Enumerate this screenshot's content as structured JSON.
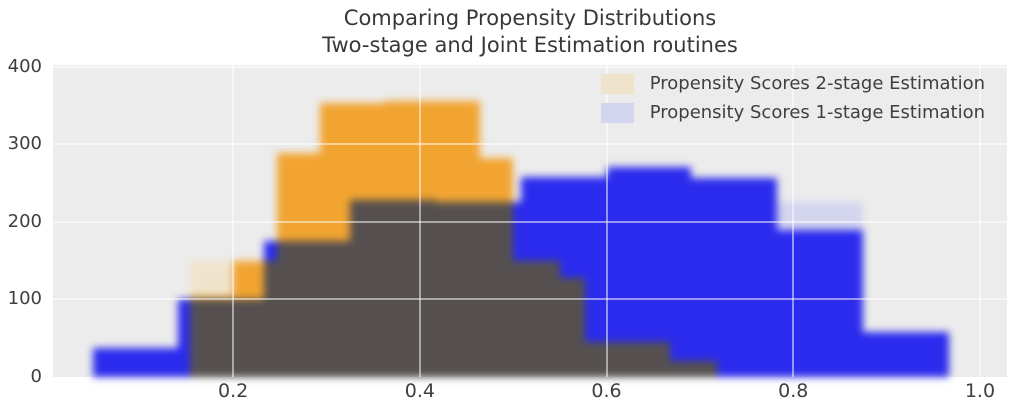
{
  "title": {
    "line1": "Comparing Propensity Distributions",
    "line2": "Two-stage and Joint Estimation routines"
  },
  "chart_data": {
    "type": "histogram",
    "title": "Comparing Propensity Distributions\nTwo-stage and Joint Estimation routines",
    "xlabel": "",
    "ylabel": "",
    "xlim": [
      0.007,
      1.029
    ],
    "ylim": [
      0,
      402
    ],
    "x_ticks": [
      0.2,
      0.4,
      0.6,
      0.8,
      1.0
    ],
    "y_ticks": [
      0,
      100,
      200,
      300,
      400
    ],
    "grid": true,
    "legend_position": "upper right",
    "colors": {
      "figure_bg": "#ffffff",
      "plot_bg": "#ececec",
      "gridline": "rgba(255,255,255,0.5)",
      "overlap": "#55504f",
      "tick_text": "#3f3f3f",
      "title_text": "#383838"
    },
    "series": [
      {
        "name": "Propensity Scores 2-stage Estimation",
        "color": "#f2a431",
        "legend_color": "#efe4cb",
        "steps": [
          [
            0.154,
            0.2,
            105
          ],
          [
            0.2,
            0.247,
            150
          ],
          [
            0.247,
            0.293,
            288
          ],
          [
            0.293,
            0.362,
            353
          ],
          [
            0.362,
            0.413,
            356
          ],
          [
            0.413,
            0.464,
            355
          ],
          [
            0.464,
            0.5,
            282
          ],
          [
            0.5,
            0.55,
            150
          ],
          [
            0.55,
            0.577,
            128
          ],
          [
            0.577,
            0.668,
            45
          ],
          [
            0.668,
            0.718,
            20
          ]
        ],
        "pale_steps": [
          [
            0.154,
            0.2,
            150
          ]
        ]
      },
      {
        "name": "Propensity Scores 1-stage Estimation",
        "color": "#2b2bee",
        "legend_color": "#d3d4ee",
        "steps": [
          [
            0.05,
            0.141,
            38
          ],
          [
            0.141,
            0.233,
            100
          ],
          [
            0.233,
            0.325,
            175
          ],
          [
            0.325,
            0.417,
            228
          ],
          [
            0.417,
            0.508,
            225
          ],
          [
            0.508,
            0.6,
            258
          ],
          [
            0.6,
            0.691,
            270
          ],
          [
            0.691,
            0.783,
            257
          ],
          [
            0.783,
            0.875,
            190
          ],
          [
            0.875,
            0.967,
            58
          ]
        ],
        "pale_steps": [
          [
            0.783,
            0.875,
            225
          ]
        ]
      }
    ]
  }
}
